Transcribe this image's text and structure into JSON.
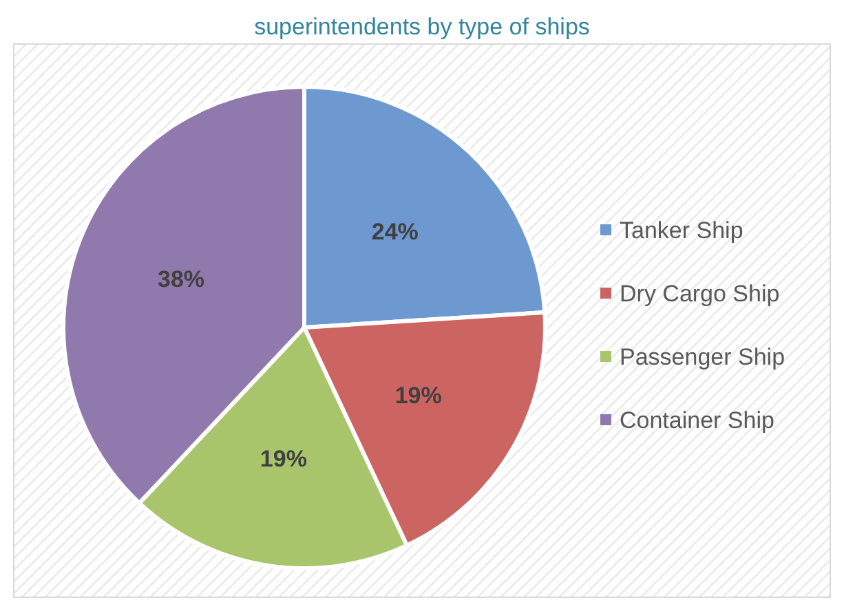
{
  "chart_data": {
    "type": "pie",
    "title": "superintendents by type of ships",
    "categories": [
      "Tanker Ship",
      "Dry Cargo Ship",
      "Passenger Ship",
      "Container Ship"
    ],
    "values": [
      24,
      19,
      19,
      38
    ],
    "colors": [
      "#6d98d0",
      "#cc6462",
      "#a9c56c",
      "#9079ad"
    ],
    "value_labels": [
      "24%",
      "19%",
      "19%",
      "38%"
    ],
    "legend": "right"
  }
}
